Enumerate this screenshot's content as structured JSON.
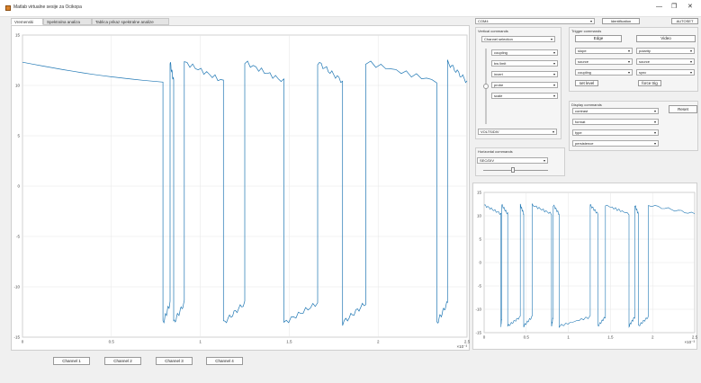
{
  "window": {
    "title": "Matlab virtualne sesije za Ocikopa",
    "minimize": "—",
    "maximize": "❐",
    "close": "✕"
  },
  "tabs": [
    {
      "label": "Vremenski"
    },
    {
      "label": "Spektralna analiza"
    },
    {
      "label": "Tablica prikaz spektralne analize"
    }
  ],
  "right": {
    "device_select": "COM4",
    "identification_button": "Identification",
    "autoset_button": "AUTOSET"
  },
  "vertical": {
    "title": "Vertical commands",
    "channel_select": "Channel selection",
    "rows": [
      "coupling",
      "bw limit",
      "invert",
      "probe",
      "scale"
    ],
    "volts_select": "VOLTS/DIV"
  },
  "horizontal": {
    "title": "Horizontal commands",
    "select": "SEC/DIV"
  },
  "trigger": {
    "title": "Trigger commands",
    "edge_button": "Edge",
    "video_button": "Video",
    "left_rows": [
      "slope",
      "source",
      "coupling"
    ],
    "right_rows": [
      "polarity",
      "source",
      "sync"
    ],
    "set_level_button": "set level",
    "force_trig_button": "force trig"
  },
  "display": {
    "title": "Display commands",
    "rows": [
      "contrast",
      "format",
      "type",
      "persistence"
    ],
    "reset_button": "Reset"
  },
  "channels": [
    {
      "label": "Channel 1"
    },
    {
      "label": "Channel 2"
    },
    {
      "label": "Channel 3"
    },
    {
      "label": "Channel 4"
    }
  ],
  "main_plot": {
    "y_ticks": [
      "15",
      "10",
      "5",
      "0",
      "-5",
      "-10",
      "-15"
    ],
    "x_ticks": [
      "0",
      "0.5",
      "1",
      "1.5",
      "2",
      "2.5"
    ],
    "x_exponent": "×10⁻³"
  },
  "small_plot": {
    "y_ticks": [
      "15",
      "10",
      "5",
      "0",
      "-5",
      "-10",
      "-15"
    ],
    "x_ticks": [
      "0",
      "0.5",
      "1",
      "1.5",
      "2",
      "2.5"
    ],
    "x_exponent": "×10⁻³"
  },
  "chart_data": [
    {
      "type": "line",
      "series_color": "#1f77b4",
      "xlim": [
        0,
        0.0025
      ],
      "ylim": [
        -15,
        15
      ],
      "grid": true,
      "period": 0.00065,
      "high_level": [
        12.5,
        10.5
      ],
      "low_level": [
        -14,
        -11.5
      ]
    },
    {
      "type": "line",
      "series_color": "#1f77b4",
      "xlim": [
        0,
        0.0025
      ],
      "ylim": [
        -15,
        15
      ],
      "grid": true
    }
  ]
}
